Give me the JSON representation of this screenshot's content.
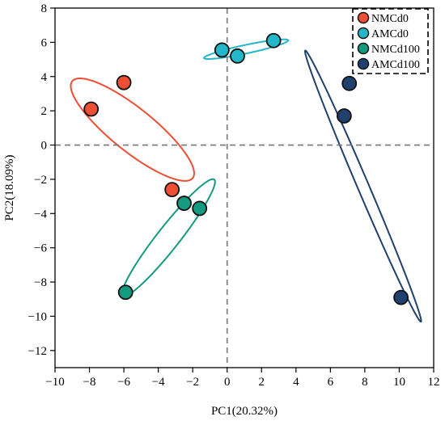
{
  "chart_data": {
    "type": "scatter",
    "xlabel": "PC1(20.32%)",
    "ylabel": "PC2(18.09%)",
    "xlim": [
      -10,
      12
    ],
    "ylim": [
      -13,
      8
    ],
    "xticks": [
      -10,
      -8,
      -6,
      -4,
      -2,
      0,
      2,
      4,
      6,
      8,
      10,
      12
    ],
    "yticks": [
      -12,
      -10,
      -8,
      -6,
      -4,
      -2,
      0,
      2,
      4,
      6,
      8
    ],
    "reference_lines": {
      "x": 0,
      "y": 0,
      "style": "dashed"
    },
    "legend": {
      "placement": "top-right",
      "border": "dashed"
    },
    "series": [
      {
        "name": "NMCd0",
        "color": "#ee4e34",
        "points": [
          [
            -7.9,
            2.1
          ],
          [
            -6.0,
            3.65
          ],
          [
            -3.2,
            -2.6
          ]
        ],
        "ellipse": {
          "center": [
            -5.5,
            0.9
          ],
          "rx": 4.5,
          "ry": 1.25,
          "angle_deg": -39
        }
      },
      {
        "name": "AMCd0",
        "color": "#24b7c9",
        "points": [
          [
            -0.3,
            5.55
          ],
          [
            0.6,
            5.2
          ],
          [
            2.7,
            6.1
          ]
        ],
        "ellipse": {
          "center": [
            1.1,
            5.6
          ],
          "rx": 2.5,
          "ry": 0.25,
          "angle_deg": 12
        }
      },
      {
        "name": "NMCd100",
        "color": "#149a80",
        "points": [
          [
            -2.5,
            -3.4
          ],
          [
            -1.6,
            -3.7
          ],
          [
            -5.9,
            -8.6
          ]
        ],
        "ellipse": {
          "center": [
            -3.4,
            -5.4
          ],
          "rx": 4.3,
          "ry": 0.65,
          "angle_deg": 52
        }
      },
      {
        "name": "AMCd100",
        "color": "#20416e",
        "points": [
          [
            7.1,
            3.6
          ],
          [
            6.8,
            1.7
          ],
          [
            10.1,
            -8.9
          ]
        ],
        "ellipse": {
          "center": [
            7.9,
            -2.4
          ],
          "rx": 8.6,
          "ry": 0.33,
          "angle_deg": -67
        }
      }
    ]
  }
}
